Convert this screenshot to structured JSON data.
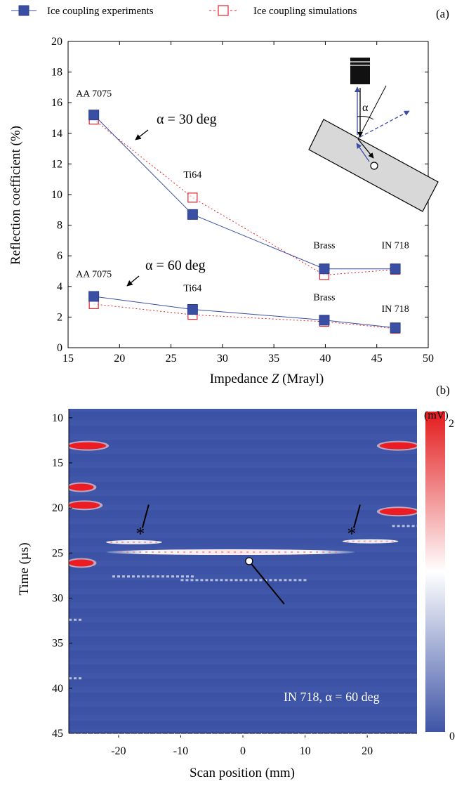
{
  "colors": {
    "experiment": "#3a4fa3",
    "simulation": "#e0242a",
    "field": "#3e54a6",
    "panel_gray": "#d8d8d8"
  },
  "legend": {
    "experiments": "Ice coupling experiments",
    "simulations": "Ice coupling simulations"
  },
  "chart_data": [
    {
      "type": "line",
      "panel_label": "(a)",
      "xlabel_prefix": "Impedance ",
      "xlabel_symbol": "Z",
      "xlabel_suffix": " (Mrayl)",
      "ylabel": "Reflection coefficient (%)",
      "xlim": [
        15,
        50
      ],
      "ylim": [
        0,
        20
      ],
      "xticks": [
        15,
        20,
        25,
        30,
        35,
        40,
        45,
        50
      ],
      "yticks": [
        0,
        2,
        4,
        6,
        8,
        10,
        12,
        14,
        16,
        18,
        20
      ],
      "grid": false,
      "legend_position": "top",
      "x": [
        17.5,
        27.1,
        39.9,
        46.8
      ],
      "materials": [
        "AA 7075",
        "Ti64",
        "Brass",
        "IN 718"
      ],
      "series": [
        {
          "name": "Ice coupling experiments",
          "group": "30",
          "style": "experiment",
          "values": [
            15.2,
            8.7,
            5.15,
            5.15
          ]
        },
        {
          "name": "Ice coupling simulations",
          "group": "30",
          "style": "simulation",
          "values": [
            14.9,
            9.8,
            4.75,
            5.1
          ]
        },
        {
          "name": "Ice coupling experiments",
          "group": "60",
          "style": "experiment",
          "values": [
            3.35,
            2.5,
            1.8,
            1.3
          ]
        },
        {
          "name": "Ice coupling simulations",
          "group": "60",
          "style": "simulation",
          "values": [
            2.85,
            2.15,
            1.7,
            1.25
          ]
        }
      ],
      "annotations": {
        "alpha30": "α = 30 deg",
        "alpha60": "α = 60 deg",
        "alpha_symbol": "α"
      },
      "point_labels_30": [
        {
          "text": "AA 7075",
          "x": 17.5,
          "y": 16.4
        },
        {
          "text": "Ti64",
          "x": 27.1,
          "y": 11.1
        },
        {
          "text": "Brass",
          "x": 39.9,
          "y": 6.5
        },
        {
          "text": "IN 718",
          "x": 46.8,
          "y": 6.5
        }
      ],
      "point_labels_60": [
        {
          "text": "AA 7075",
          "x": 17.5,
          "y": 4.6
        },
        {
          "text": "Ti64",
          "x": 27.1,
          "y": 3.7
        },
        {
          "text": "Brass",
          "x": 39.9,
          "y": 3.1
        },
        {
          "text": "IN 718",
          "x": 46.8,
          "y": 2.35
        }
      ]
    },
    {
      "type": "heatmap",
      "panel_label": "(b)",
      "xlabel": "Scan position (mm)",
      "ylabel": "Time (µs)",
      "xlim": [
        -28,
        28
      ],
      "ylim": [
        45,
        9
      ],
      "xticks": [
        -20,
        -10,
        0,
        10,
        20
      ],
      "yticks": [
        10,
        15,
        20,
        25,
        30,
        35,
        40,
        45
      ],
      "colorbar": {
        "unit": "(mV)",
        "max_label": "2",
        "min_label": "0",
        "range": [
          0,
          2
        ]
      },
      "annotation": "IN 718, α = 60 deg",
      "echoes": [
        {
          "x0": -22,
          "x1": 18,
          "t": 24.9,
          "amp": 1.6,
          "kind": "main"
        },
        {
          "x0": -22,
          "x1": -13,
          "t": 23.8,
          "amp": 1.2,
          "kind": "side"
        },
        {
          "x0": 16,
          "x1": 25,
          "t": 23.7,
          "amp": 1.2,
          "kind": "side"
        },
        {
          "x0": -21,
          "x1": -8,
          "t": 27.6,
          "amp": 0.7,
          "kind": "faint"
        },
        {
          "x0": -10,
          "x1": 10,
          "t": 28.0,
          "amp": 0.6,
          "kind": "faint"
        },
        {
          "x0": -28,
          "x1": -22,
          "t": 13.1,
          "amp": 2.0,
          "kind": "edge"
        },
        {
          "x0": 22,
          "x1": 28,
          "t": 13.1,
          "amp": 2.0,
          "kind": "edge"
        },
        {
          "x0": -28,
          "x1": -24,
          "t": 17.7,
          "amp": 2.0,
          "kind": "edge"
        },
        {
          "x0": -28,
          "x1": -23,
          "t": 19.7,
          "amp": 2.0,
          "kind": "edge"
        },
        {
          "x0": 22,
          "x1": 28,
          "t": 20.4,
          "amp": 2.0,
          "kind": "edge"
        },
        {
          "x0": -28,
          "x1": -24,
          "t": 26.1,
          "amp": 2.0,
          "kind": "edge"
        },
        {
          "x0": 24,
          "x1": 28,
          "t": 22.0,
          "amp": 1.0,
          "kind": "faint"
        },
        {
          "x0": -28,
          "x1": -26,
          "t": 32.4,
          "amp": 0.8,
          "kind": "faint"
        },
        {
          "x0": -28,
          "x1": -26,
          "t": 38.9,
          "amp": 0.8,
          "kind": "faint"
        }
      ],
      "markers": [
        {
          "type": "star",
          "x": -16.5,
          "t": 22.6
        },
        {
          "type": "star",
          "x": 17.5,
          "t": 22.6
        },
        {
          "type": "circle",
          "x": 1.0,
          "t": 25.9
        }
      ]
    }
  ]
}
